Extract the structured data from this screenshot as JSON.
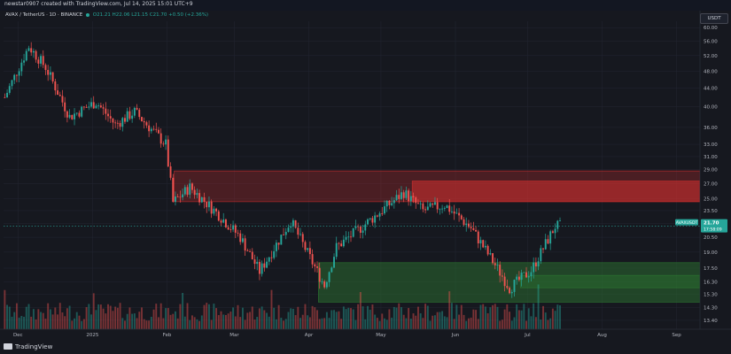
{
  "header": {
    "text": "newstar0907 created with TradingView.com, Jul 14, 2025 15:01 UTC+9"
  },
  "legend": {
    "symbol": "AVAX / TetherUS · 1D · BINANCE",
    "ohlc": "O21.21 H22.06 L21.15 C21.70 +0.50 (+2.36%)"
  },
  "currency": "USDT",
  "footer": {
    "logo_text": "TradingView"
  },
  "price_badge": {
    "symbol": "AVAXUSDT",
    "price": "21.70",
    "countdown": "17:58:09"
  },
  "colors": {
    "up": "#26a69a",
    "down": "#ef5350",
    "background": "#16181f",
    "grid": "#232632",
    "zone_red": "#d32f2f",
    "zone_green": "#2e7d32",
    "badge": "#26a69a"
  },
  "chart_data": {
    "type": "candlestick",
    "y_scale": "log",
    "ylim": [
      12.8,
      62
    ],
    "y_ticks": [
      "60.00",
      "56.00",
      "52.00",
      "48.00",
      "44.00",
      "40.00",
      "36.00",
      "33.00",
      "31.00",
      "29.00",
      "27.00",
      "25.00",
      "23.50",
      "22.00",
      "20.50",
      "19.00",
      "17.50",
      "16.30",
      "15.30",
      "14.30",
      "13.40"
    ],
    "x_ticks": [
      "Dec",
      "2025",
      "Feb",
      "Mar",
      "Apr",
      "May",
      "Jun",
      "Jul",
      "Aug",
      "Sep"
    ],
    "last_price": 21.7,
    "zones": [
      {
        "kind": "resistance",
        "color": "red",
        "low": 24.6,
        "high": 28.8
      },
      {
        "kind": "support",
        "color": "green",
        "low": 14.7,
        "high": 18.0
      }
    ],
    "series": [
      {
        "from": "2024-11-25",
        "close": 42.0
      },
      {
        "from": "2024-12-05",
        "close": 54.5
      },
      {
        "from": "2024-12-12",
        "close": 49.0
      },
      {
        "from": "2024-12-22",
        "close": 38.0
      },
      {
        "from": "2025-01-02",
        "close": 41.0
      },
      {
        "from": "2025-01-10",
        "close": 36.5
      },
      {
        "from": "2025-01-18",
        "close": 39.0
      },
      {
        "from": "2025-01-31",
        "close": 33.0
      },
      {
        "from": "2025-02-03",
        "close": 24.5
      },
      {
        "from": "2025-02-10",
        "close": 26.5
      },
      {
        "from": "2025-02-22",
        "close": 23.0
      },
      {
        "from": "2025-03-03",
        "close": 20.5
      },
      {
        "from": "2025-03-11",
        "close": 17.2
      },
      {
        "from": "2025-03-24",
        "close": 22.3
      },
      {
        "from": "2025-04-07",
        "close": 16.0
      },
      {
        "from": "2025-04-12",
        "close": 19.5
      },
      {
        "from": "2025-04-22",
        "close": 21.5
      },
      {
        "from": "2025-05-10",
        "close": 25.8
      },
      {
        "from": "2025-05-18",
        "close": 23.5
      },
      {
        "from": "2025-05-27",
        "close": 24.2
      },
      {
        "from": "2025-06-07",
        "close": 21.5
      },
      {
        "from": "2025-06-20",
        "close": 16.8
      },
      {
        "from": "2025-06-23",
        "close": 15.8
      },
      {
        "from": "2025-07-02",
        "close": 17.3
      },
      {
        "from": "2025-07-12",
        "close": 21.7
      }
    ]
  }
}
